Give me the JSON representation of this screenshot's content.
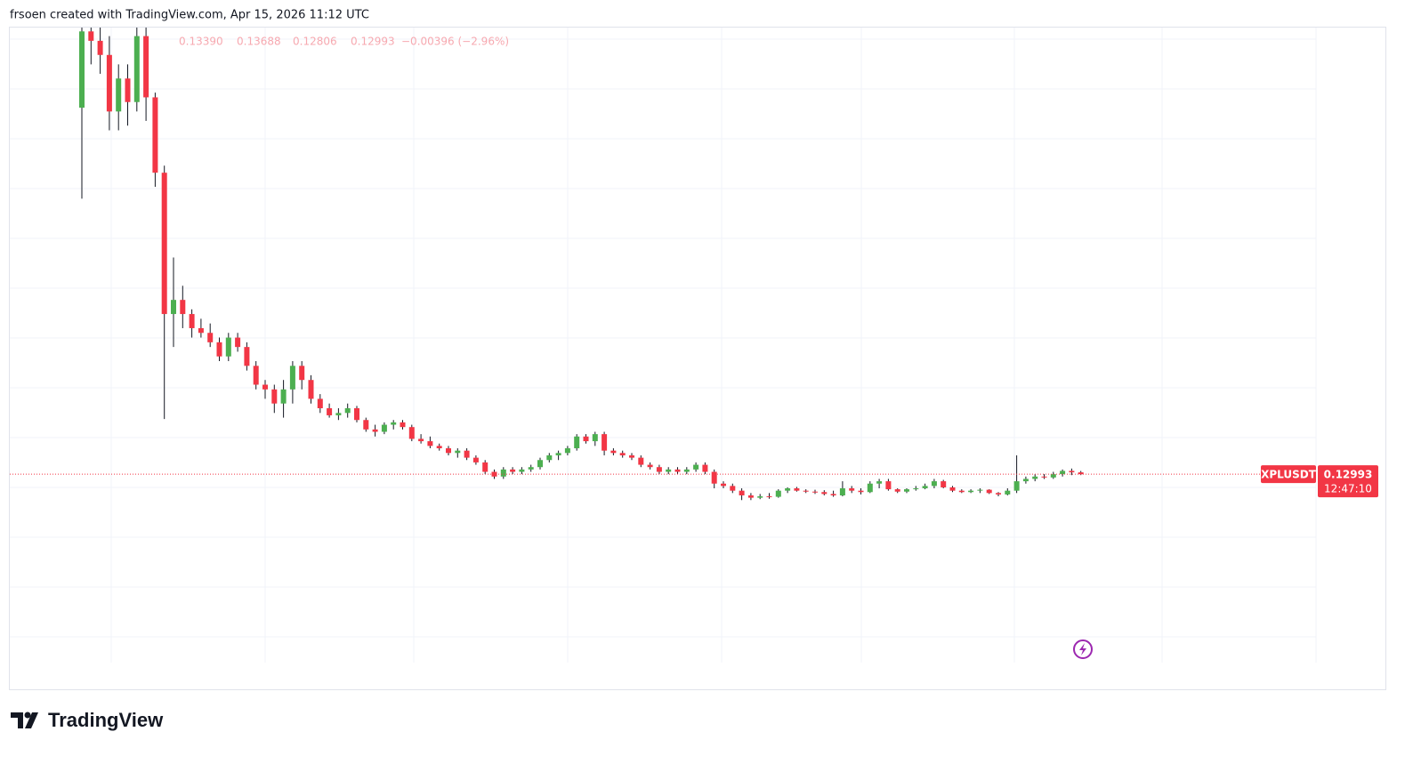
{
  "header": "frsoen created with TradingView.com, Apr 15, 2026 11:12 UTC",
  "legend": {
    "open": "0.13390",
    "high": "0.13688",
    "low": "0.12806",
    "close": "0.12993",
    "change": "−0.00396 (−2.96%)"
  },
  "brand": "TradingView",
  "chart_data": {
    "type": "candlestick",
    "symbol": "XPLUSDT",
    "countdown": "12:47:10",
    "up_color": "#4caf50",
    "down_color": "#f23645",
    "ylim": [
      -0.27,
      1.08
    ],
    "last_price": 0.12993,
    "ohlc": [
      [
        0.908,
        1.078,
        0.715,
        1.07
      ],
      [
        1.07,
        1.1,
        1.0,
        1.05
      ],
      [
        1.05,
        1.09,
        0.98,
        1.02
      ],
      [
        1.02,
        1.06,
        0.86,
        0.9
      ],
      [
        0.9,
        1.0,
        0.86,
        0.97
      ],
      [
        0.97,
        1.0,
        0.87,
        0.92
      ],
      [
        0.92,
        1.08,
        0.9,
        1.06
      ],
      [
        1.06,
        1.08,
        0.88,
        0.93
      ],
      [
        0.93,
        0.94,
        0.74,
        0.77
      ],
      [
        0.77,
        0.785,
        0.247,
        0.47
      ],
      [
        0.47,
        0.59,
        0.4,
        0.5
      ],
      [
        0.5,
        0.53,
        0.44,
        0.47
      ],
      [
        0.47,
        0.48,
        0.42,
        0.44
      ],
      [
        0.44,
        0.46,
        0.42,
        0.43
      ],
      [
        0.43,
        0.45,
        0.4,
        0.41
      ],
      [
        0.41,
        0.42,
        0.37,
        0.38
      ],
      [
        0.38,
        0.43,
        0.37,
        0.42
      ],
      [
        0.42,
        0.43,
        0.39,
        0.4
      ],
      [
        0.4,
        0.41,
        0.35,
        0.36
      ],
      [
        0.36,
        0.37,
        0.31,
        0.32
      ],
      [
        0.32,
        0.33,
        0.29,
        0.31
      ],
      [
        0.31,
        0.32,
        0.26,
        0.28
      ],
      [
        0.28,
        0.33,
        0.25,
        0.31
      ],
      [
        0.31,
        0.37,
        0.28,
        0.36
      ],
      [
        0.36,
        0.37,
        0.31,
        0.33
      ],
      [
        0.33,
        0.34,
        0.28,
        0.29
      ],
      [
        0.29,
        0.3,
        0.26,
        0.27
      ],
      [
        0.27,
        0.28,
        0.25,
        0.255
      ],
      [
        0.255,
        0.27,
        0.245,
        0.26
      ],
      [
        0.26,
        0.28,
        0.25,
        0.27
      ],
      [
        0.27,
        0.275,
        0.24,
        0.245
      ],
      [
        0.245,
        0.25,
        0.22,
        0.225
      ],
      [
        0.225,
        0.235,
        0.21,
        0.22
      ],
      [
        0.22,
        0.24,
        0.215,
        0.235
      ],
      [
        0.235,
        0.245,
        0.225,
        0.24
      ],
      [
        0.24,
        0.245,
        0.225,
        0.23
      ],
      [
        0.23,
        0.235,
        0.2,
        0.205
      ],
      [
        0.205,
        0.215,
        0.195,
        0.2
      ],
      [
        0.2,
        0.21,
        0.185,
        0.19
      ],
      [
        0.19,
        0.195,
        0.18,
        0.185
      ],
      [
        0.185,
        0.19,
        0.17,
        0.175
      ],
      [
        0.175,
        0.185,
        0.165,
        0.18
      ],
      [
        0.18,
        0.185,
        0.16,
        0.165
      ],
      [
        0.165,
        0.17,
        0.15,
        0.155
      ],
      [
        0.155,
        0.16,
        0.13,
        0.135
      ],
      [
        0.135,
        0.14,
        0.12,
        0.125
      ],
      [
        0.125,
        0.145,
        0.12,
        0.14
      ],
      [
        0.14,
        0.145,
        0.13,
        0.135
      ],
      [
        0.135,
        0.145,
        0.13,
        0.14
      ],
      [
        0.14,
        0.15,
        0.135,
        0.145
      ],
      [
        0.145,
        0.165,
        0.14,
        0.16
      ],
      [
        0.16,
        0.175,
        0.155,
        0.17
      ],
      [
        0.17,
        0.18,
        0.16,
        0.175
      ],
      [
        0.175,
        0.19,
        0.17,
        0.185
      ],
      [
        0.185,
        0.215,
        0.18,
        0.21
      ],
      [
        0.21,
        0.215,
        0.195,
        0.2
      ],
      [
        0.2,
        0.22,
        0.19,
        0.215
      ],
      [
        0.215,
        0.22,
        0.17,
        0.18
      ],
      [
        0.18,
        0.185,
        0.17,
        0.175
      ],
      [
        0.175,
        0.18,
        0.165,
        0.17
      ],
      [
        0.17,
        0.175,
        0.16,
        0.165
      ],
      [
        0.165,
        0.17,
        0.145,
        0.15
      ],
      [
        0.15,
        0.155,
        0.14,
        0.145
      ],
      [
        0.145,
        0.15,
        0.13,
        0.135
      ],
      [
        0.135,
        0.145,
        0.13,
        0.14
      ],
      [
        0.14,
        0.145,
        0.13,
        0.135
      ],
      [
        0.135,
        0.145,
        0.13,
        0.14
      ],
      [
        0.14,
        0.155,
        0.135,
        0.15
      ],
      [
        0.15,
        0.155,
        0.13,
        0.135
      ],
      [
        0.135,
        0.14,
        0.1,
        0.11
      ],
      [
        0.11,
        0.115,
        0.1,
        0.105
      ],
      [
        0.105,
        0.11,
        0.09,
        0.095
      ],
      [
        0.095,
        0.1,
        0.075,
        0.085
      ],
      [
        0.085,
        0.09,
        0.075,
        0.08
      ],
      [
        0.08,
        0.088,
        0.077,
        0.083
      ],
      [
        0.083,
        0.09,
        0.078,
        0.082
      ],
      [
        0.082,
        0.098,
        0.08,
        0.095
      ],
      [
        0.095,
        0.102,
        0.09,
        0.1
      ],
      [
        0.1,
        0.103,
        0.093,
        0.095
      ],
      [
        0.095,
        0.098,
        0.09,
        0.093
      ],
      [
        0.093,
        0.097,
        0.088,
        0.092
      ],
      [
        0.092,
        0.096,
        0.085,
        0.088
      ],
      [
        0.088,
        0.095,
        0.082,
        0.085
      ],
      [
        0.085,
        0.115,
        0.083,
        0.1
      ],
      [
        0.1,
        0.105,
        0.09,
        0.095
      ],
      [
        0.095,
        0.1,
        0.087,
        0.092
      ],
      [
        0.092,
        0.115,
        0.09,
        0.11
      ],
      [
        0.11,
        0.12,
        0.1,
        0.115
      ],
      [
        0.115,
        0.12,
        0.095,
        0.098
      ],
      [
        0.098,
        0.1,
        0.09,
        0.093
      ],
      [
        0.093,
        0.1,
        0.09,
        0.098
      ],
      [
        0.098,
        0.105,
        0.095,
        0.1
      ],
      [
        0.1,
        0.11,
        0.098,
        0.105
      ],
      [
        0.105,
        0.12,
        0.1,
        0.115
      ],
      [
        0.115,
        0.118,
        0.1,
        0.102
      ],
      [
        0.102,
        0.105,
        0.092,
        0.095
      ],
      [
        0.095,
        0.098,
        0.09,
        0.092
      ],
      [
        0.092,
        0.098,
        0.09,
        0.095
      ],
      [
        0.095,
        0.1,
        0.09,
        0.097
      ],
      [
        0.097,
        0.098,
        0.088,
        0.09
      ],
      [
        0.09,
        0.092,
        0.083,
        0.087
      ],
      [
        0.087,
        0.1,
        0.085,
        0.095
      ],
      [
        0.095,
        0.17,
        0.09,
        0.115
      ],
      [
        0.115,
        0.125,
        0.11,
        0.12
      ],
      [
        0.12,
        0.13,
        0.115,
        0.125
      ],
      [
        0.125,
        0.13,
        0.12,
        0.123
      ],
      [
        0.123,
        0.135,
        0.12,
        0.13
      ],
      [
        0.13,
        0.14,
        0.125,
        0.137
      ],
      [
        0.137,
        0.142,
        0.128,
        0.1339
      ],
      [
        0.1339,
        0.13688,
        0.12806,
        0.12993
      ]
    ]
  }
}
